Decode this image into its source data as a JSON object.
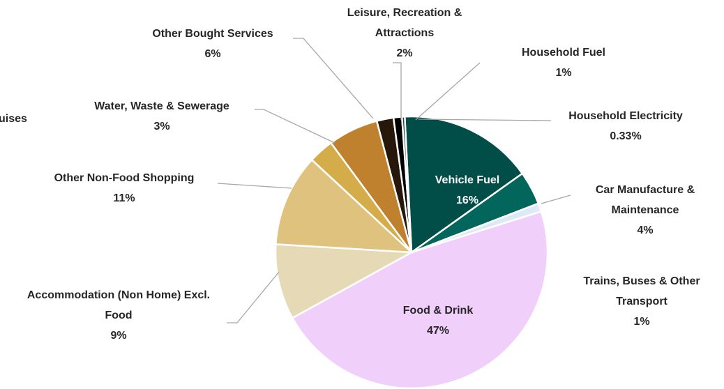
{
  "chart_data": {
    "type": "pie",
    "categories": [
      "Vehicle Fuel",
      "Car Manufacture & Maintenance",
      "Trains, Buses & Other Transport",
      "Food & Drink",
      "Accommodation (Non Home) Excl. Food",
      "Other Non-Food Shopping",
      "Water, Waste & Sewerage",
      "Other Bought Services",
      "Leisure, Recreation & Attractions",
      "Household Fuel",
      "Household Electricity"
    ],
    "values": [
      16,
      4,
      1,
      47,
      9,
      11,
      3,
      6,
      2,
      1,
      0.33
    ],
    "value_labels": [
      "16%",
      "4%",
      "1%",
      "47%",
      "9%",
      "11%",
      "3%",
      "6%",
      "2%",
      "1%",
      "0.33%"
    ],
    "colors": [
      "#014d47",
      "#02665d",
      "#dde9f7",
      "#f0d0fb",
      "#e6d9b6",
      "#dfc27d",
      "#d4ad4a",
      "#bf812d",
      "#26170a",
      "#000000",
      "#0b3f3a"
    ],
    "annotations": [
      "uises"
    ]
  }
}
